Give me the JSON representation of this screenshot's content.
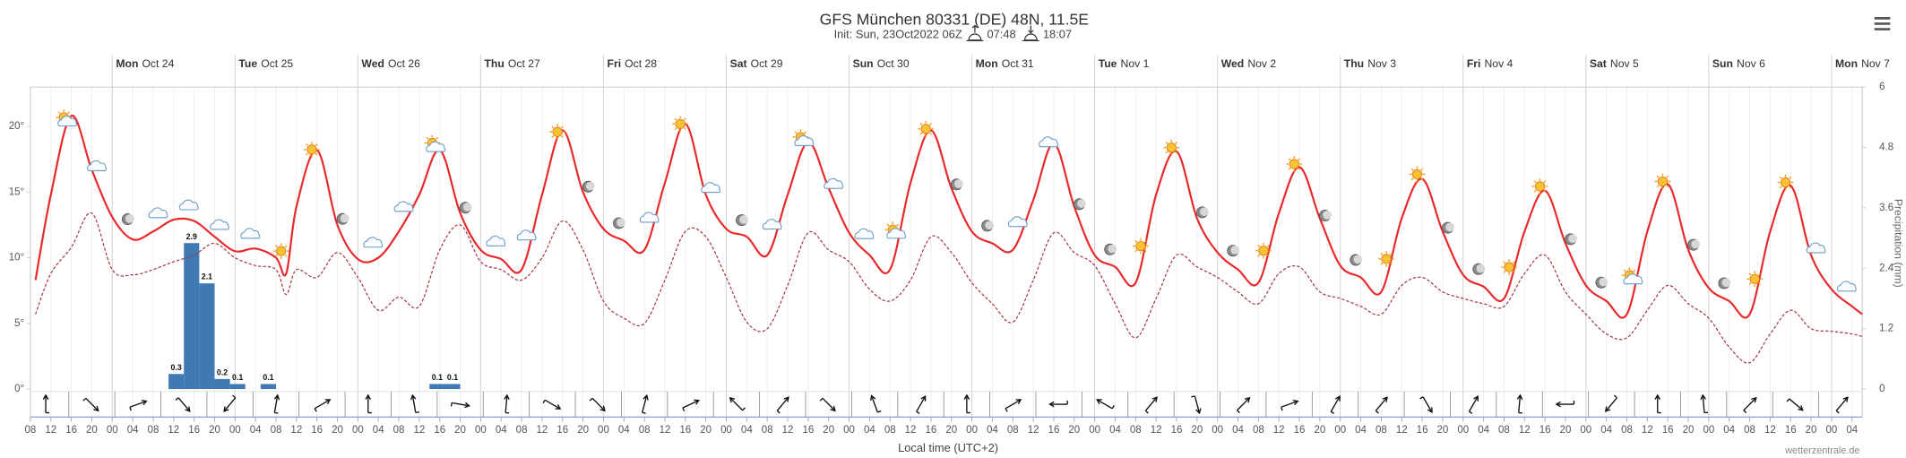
{
  "chart_data": {
    "type": "line",
    "title": "GFS München 80331 (DE) 48N, 11.5E",
    "subtitle": "Init: Sun, 23Oct2022 06Z",
    "sunrise": "07:48",
    "sunset": "18:07",
    "x_label": "Local time (UTC+2)",
    "y2_label": "Precipitation (mm)",
    "source": "wetterzentrale.de",
    "xlim": [
      8,
      366
    ],
    "xticks": [
      {
        "value": 8,
        "label": "08"
      },
      {
        "value": 12,
        "label": "12"
      },
      {
        "value": 16,
        "label": "16"
      },
      {
        "value": 20,
        "label": "20"
      },
      {
        "value": 24,
        "label": "00"
      },
      {
        "value": 28,
        "label": "04"
      },
      {
        "value": 32,
        "label": "08"
      },
      {
        "value": 36,
        "label": "12"
      },
      {
        "value": 40,
        "label": "16"
      },
      {
        "value": 44,
        "label": "20"
      },
      {
        "value": 48,
        "label": "00"
      },
      {
        "value": 52,
        "label": "04"
      },
      {
        "value": 56,
        "label": "08"
      },
      {
        "value": 60,
        "label": "12"
      },
      {
        "value": 64,
        "label": "16"
      },
      {
        "value": 68,
        "label": "20"
      },
      {
        "value": 72,
        "label": "00"
      },
      {
        "value": 76,
        "label": "04"
      },
      {
        "value": 80,
        "label": "08"
      },
      {
        "value": 84,
        "label": "12"
      },
      {
        "value": 88,
        "label": "16"
      },
      {
        "value": 92,
        "label": "20"
      },
      {
        "value": 96,
        "label": "00"
      },
      {
        "value": 100,
        "label": "04"
      },
      {
        "value": 104,
        "label": "08"
      },
      {
        "value": 108,
        "label": "12"
      },
      {
        "value": 112,
        "label": "16"
      },
      {
        "value": 116,
        "label": "20"
      },
      {
        "value": 120,
        "label": "00"
      },
      {
        "value": 124,
        "label": "04"
      },
      {
        "value": 128,
        "label": "08"
      },
      {
        "value": 132,
        "label": "12"
      },
      {
        "value": 136,
        "label": "16"
      },
      {
        "value": 140,
        "label": "20"
      },
      {
        "value": 144,
        "label": "00"
      },
      {
        "value": 148,
        "label": "04"
      },
      {
        "value": 152,
        "label": "08"
      },
      {
        "value": 156,
        "label": "12"
      },
      {
        "value": 160,
        "label": "16"
      },
      {
        "value": 164,
        "label": "20"
      },
      {
        "value": 168,
        "label": "00"
      },
      {
        "value": 172,
        "label": "04"
      },
      {
        "value": 176,
        "label": "08"
      },
      {
        "value": 180,
        "label": "12"
      },
      {
        "value": 184,
        "label": "16"
      },
      {
        "value": 188,
        "label": "20"
      },
      {
        "value": 192,
        "label": "00"
      },
      {
        "value": 196,
        "label": "04"
      },
      {
        "value": 200,
        "label": "08"
      },
      {
        "value": 204,
        "label": "12"
      },
      {
        "value": 208,
        "label": "16"
      },
      {
        "value": 212,
        "label": "20"
      },
      {
        "value": 216,
        "label": "00"
      },
      {
        "value": 220,
        "label": "04"
      },
      {
        "value": 224,
        "label": "08"
      },
      {
        "value": 228,
        "label": "12"
      },
      {
        "value": 232,
        "label": "16"
      },
      {
        "value": 236,
        "label": "20"
      },
      {
        "value": 240,
        "label": "00"
      },
      {
        "value": 244,
        "label": "04"
      },
      {
        "value": 248,
        "label": "08"
      },
      {
        "value": 252,
        "label": "12"
      },
      {
        "value": 256,
        "label": "16"
      },
      {
        "value": 260,
        "label": "20"
      },
      {
        "value": 264,
        "label": "00"
      },
      {
        "value": 268,
        "label": "04"
      },
      {
        "value": 272,
        "label": "08"
      },
      {
        "value": 276,
        "label": "12"
      },
      {
        "value": 280,
        "label": "16"
      },
      {
        "value": 284,
        "label": "20"
      },
      {
        "value": 288,
        "label": "00"
      },
      {
        "value": 292,
        "label": "04"
      },
      {
        "value": 296,
        "label": "08"
      },
      {
        "value": 300,
        "label": "12"
      },
      {
        "value": 304,
        "label": "16"
      },
      {
        "value": 308,
        "label": "20"
      },
      {
        "value": 312,
        "label": "00"
      },
      {
        "value": 316,
        "label": "04"
      },
      {
        "value": 320,
        "label": "08"
      },
      {
        "value": 324,
        "label": "12"
      },
      {
        "value": 328,
        "label": "16"
      },
      {
        "value": 332,
        "label": "20"
      },
      {
        "value": 336,
        "label": "00"
      },
      {
        "value": 340,
        "label": "04"
      },
      {
        "value": 344,
        "label": "08"
      },
      {
        "value": 348,
        "label": "12"
      },
      {
        "value": 352,
        "label": "16"
      },
      {
        "value": 356,
        "label": "20"
      },
      {
        "value": 360,
        "label": "00"
      },
      {
        "value": 364,
        "label": "04"
      }
    ],
    "day_ticks": [
      {
        "value": 24,
        "day": "Mon",
        "date": "Oct 24"
      },
      {
        "value": 48,
        "day": "Tue",
        "date": "Oct 25"
      },
      {
        "value": 72,
        "day": "Wed",
        "date": "Oct 26"
      },
      {
        "value": 96,
        "day": "Thu",
        "date": "Oct 27"
      },
      {
        "value": 120,
        "day": "Fri",
        "date": "Oct 28"
      },
      {
        "value": 144,
        "day": "Sat",
        "date": "Oct 29"
      },
      {
        "value": 168,
        "day": "Sun",
        "date": "Oct 30"
      },
      {
        "value": 192,
        "day": "Mon",
        "date": "Oct 31"
      },
      {
        "value": 216,
        "day": "Tue",
        "date": "Nov 1"
      },
      {
        "value": 240,
        "day": "Wed",
        "date": "Nov 2"
      },
      {
        "value": 264,
        "day": "Thu",
        "date": "Nov 3"
      },
      {
        "value": 288,
        "day": "Fri",
        "date": "Nov 4"
      },
      {
        "value": 312,
        "day": "Sat",
        "date": "Nov 5"
      },
      {
        "value": 336,
        "day": "Sun",
        "date": "Nov 6"
      },
      {
        "value": 360,
        "day": "Mon",
        "date": "Nov 7"
      }
    ],
    "ylim": [
      0,
      23
    ],
    "yticks": [
      {
        "value": 0,
        "label": "0°"
      },
      {
        "value": 5,
        "label": "5°"
      },
      {
        "value": 10,
        "label": "10°"
      },
      {
        "value": 15,
        "label": "15°"
      },
      {
        "value": 20,
        "label": "20°"
      }
    ],
    "y2lim": [
      0,
      6
    ],
    "y2ticks": [
      0,
      1.2,
      2.4,
      3.6,
      4.8,
      6
    ],
    "series": [
      {
        "color": "#e8282b",
        "style": "solid",
        "x": [
          9,
          12,
          16,
          20,
          24,
          28,
          32,
          36,
          40,
          44,
          48,
          52,
          56,
          58,
          60,
          64,
          68,
          72,
          76,
          80,
          84,
          88,
          92,
          96,
          100,
          104,
          108,
          112,
          116,
          120,
          124,
          128,
          132,
          136,
          140,
          144,
          148,
          152,
          156,
          160,
          164,
          168,
          172,
          176,
          180,
          184,
          188,
          192,
          196,
          200,
          204,
          208,
          212,
          216,
          220,
          224,
          228,
          232,
          236,
          240,
          244,
          248,
          252,
          256,
          260,
          264,
          268,
          272,
          276,
          280,
          284,
          288,
          292,
          296,
          300,
          304,
          308,
          312,
          316,
          320,
          324,
          328,
          332,
          336,
          340,
          344,
          348,
          352,
          356,
          360,
          364,
          366
        ],
        "values": [
          8.3,
          14.8,
          20.8,
          16.7,
          13.1,
          11.4,
          12,
          12.9,
          12.8,
          11.6,
          10.5,
          10.7,
          10,
          8.8,
          13.9,
          18.2,
          12.5,
          9.9,
          10,
          12,
          14.8,
          18.2,
          13.4,
          10.6,
          9.9,
          9.1,
          14.8,
          19.7,
          15,
          12.2,
          11.3,
          10.6,
          15.7,
          20.2,
          14.8,
          12.2,
          11.6,
          10.2,
          14.8,
          18.8,
          15.3,
          11.9,
          10.2,
          9.1,
          15.7,
          19.7,
          15.3,
          12,
          11.1,
          10.6,
          14.4,
          18.7,
          13.9,
          10.2,
          9.3,
          8.1,
          14.8,
          18.1,
          13,
          10.4,
          9.1,
          8.1,
          13.4,
          16.9,
          13,
          9.4,
          8.5,
          7.4,
          13,
          16,
          12,
          8.7,
          7.8,
          6.9,
          12,
          15.1,
          11.1,
          7.9,
          6.7,
          5.7,
          12,
          15.6,
          10.6,
          7.7,
          6.7,
          5.7,
          12,
          15.5,
          10.2,
          7.6,
          6.3,
          5.7
        ]
      },
      {
        "color": "#a33a44",
        "style": "dashed",
        "x": [
          9,
          12,
          16,
          20,
          24,
          28,
          32,
          36,
          40,
          44,
          48,
          52,
          56,
          58,
          60,
          64,
          68,
          72,
          76,
          80,
          84,
          88,
          92,
          96,
          100,
          104,
          108,
          112,
          116,
          120,
          124,
          128,
          132,
          136,
          140,
          144,
          148,
          152,
          156,
          160,
          164,
          168,
          172,
          176,
          180,
          184,
          188,
          192,
          196,
          200,
          204,
          208,
          212,
          216,
          220,
          224,
          228,
          232,
          236,
          240,
          244,
          248,
          252,
          256,
          260,
          264,
          268,
          272,
          276,
          280,
          284,
          288,
          292,
          296,
          300,
          304,
          308,
          312,
          316,
          320,
          324,
          328,
          332,
          336,
          340,
          344,
          348,
          352,
          356,
          360,
          364,
          366
        ],
        "values": [
          5.7,
          8.8,
          10.8,
          13.4,
          9.1,
          8.7,
          9.1,
          9.7,
          10.2,
          11.1,
          10,
          9.4,
          9.1,
          7.2,
          9.1,
          8.5,
          10.4,
          8.5,
          6,
          7,
          6.3,
          10.6,
          12.5,
          9.7,
          9.1,
          8.3,
          10,
          12.8,
          10.6,
          6.7,
          5.4,
          5,
          8.3,
          12,
          11.6,
          8.5,
          5.1,
          4.6,
          7.9,
          11.9,
          10.6,
          9.7,
          7.6,
          6.7,
          8.3,
          11.6,
          10.4,
          8.1,
          6.5,
          5.1,
          8.3,
          11.9,
          10.4,
          9.4,
          6.5,
          3.9,
          6.9,
          10.2,
          9.3,
          8.5,
          7.4,
          6.5,
          8.8,
          9.3,
          7.4,
          6.9,
          6.3,
          5.7,
          7.9,
          8.5,
          7.4,
          6.9,
          6.5,
          6.3,
          8.8,
          10.2,
          7.4,
          5.7,
          4.2,
          3.9,
          6,
          7.9,
          6.5,
          5.4,
          3.2,
          2,
          4.2,
          6,
          4.6,
          4.4,
          4.2,
          4
        ]
      }
    ],
    "precipitation": {
      "type": "bar",
      "axis": "y2",
      "color": "#3f7ab4",
      "x": [
        35,
        38,
        41,
        44,
        47,
        53,
        86,
        89
      ],
      "x_end": [
        38,
        41,
        44,
        47,
        50,
        56,
        89,
        92
      ],
      "values": [
        0.3,
        2.9,
        2.1,
        0.2,
        0.1,
        0.1,
        0.1,
        0.1
      ]
    },
    "symbols": {
      "x": [
        15,
        21,
        27,
        33,
        39,
        45,
        51,
        57,
        63,
        69,
        75,
        81,
        87,
        93,
        99,
        105,
        111,
        117,
        123,
        129,
        135,
        141,
        147,
        153,
        159,
        165,
        171,
        177,
        183,
        189,
        195,
        201,
        207,
        213,
        219,
        225,
        231,
        237,
        243,
        249,
        255,
        261,
        267,
        273,
        279,
        285,
        291,
        297,
        303,
        309,
        315,
        321,
        327,
        333,
        339,
        345,
        351,
        357,
        363
      ],
      "kinds": [
        "partly",
        "cloud",
        "moon",
        "cloud",
        "cloud",
        "cloud",
        "cloud",
        "sun",
        "sun",
        "moon",
        "cloud",
        "cloud",
        "partly",
        "moon",
        "cloud",
        "cloud",
        "sun",
        "moon",
        "moon",
        "cloud",
        "sun",
        "cloud",
        "moon",
        "cloud",
        "partly",
        "cloud",
        "cloud",
        "partly",
        "sun",
        "moon",
        "moon",
        "cloud",
        "cloud",
        "moon",
        "moon",
        "sun",
        "sun",
        "moon",
        "moon",
        "sun",
        "sun",
        "moon",
        "moon",
        "sun",
        "sun",
        "moon",
        "moon",
        "sun",
        "sun",
        "moon",
        "moon",
        "partly",
        "sun",
        "moon",
        "moon",
        "sun",
        "sun",
        "cloud",
        "cloud"
      ]
    },
    "wind": {
      "x": [
        11,
        20,
        29,
        38,
        47,
        56,
        65,
        74,
        83,
        92,
        101,
        110,
        119,
        128,
        137,
        146,
        155,
        164,
        173,
        182,
        191,
        200,
        209,
        218,
        227,
        236,
        245,
        254,
        263,
        272,
        281,
        290,
        299,
        308,
        317,
        326,
        335,
        344,
        353,
        362
      ],
      "direction": [
        0,
        135,
        70,
        140,
        220,
        10,
        60,
        0,
        350,
        100,
        5,
        120,
        135,
        15,
        65,
        315,
        40,
        135,
        340,
        30,
        0,
        60,
        270,
        300,
        40,
        165,
        45,
        70,
        30,
        40,
        150,
        30,
        5,
        270,
        220,
        0,
        355,
        45,
        130,
        40
      ]
    }
  }
}
